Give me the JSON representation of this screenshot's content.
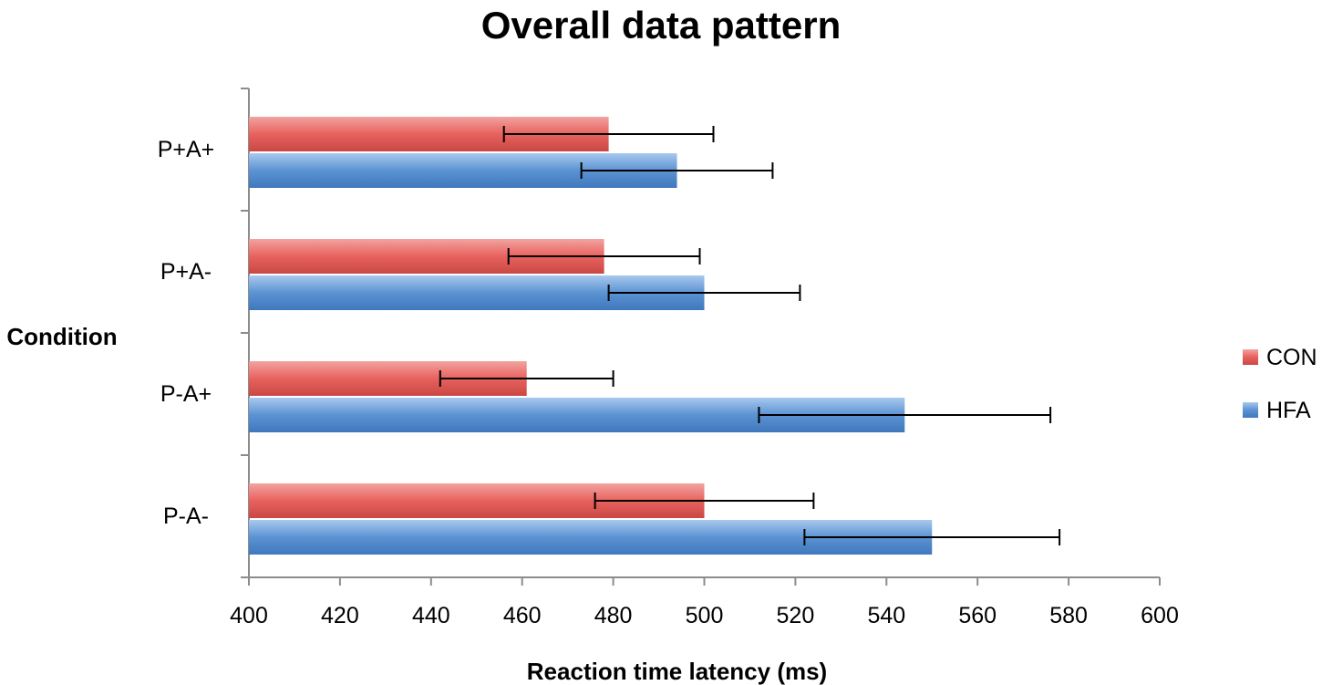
{
  "chart_data": {
    "type": "bar",
    "orientation": "horizontal",
    "title": "Overall data pattern",
    "xlabel": "Reaction time latency (ms)",
    "ylabel": "Condition",
    "xlim": [
      400,
      600
    ],
    "xticks": [
      400,
      420,
      440,
      460,
      480,
      500,
      520,
      540,
      560,
      580,
      600
    ],
    "categories": [
      "P+A+",
      "P+A-",
      "P-A+",
      "P-A-"
    ],
    "series": [
      {
        "name": "CON",
        "color": "#e8625e",
        "values": [
          479,
          478,
          461,
          500
        ],
        "error": [
          23,
          21,
          19,
          24
        ]
      },
      {
        "name": "HFA",
        "color": "#5b93d3",
        "values": [
          494,
          500,
          544,
          550
        ],
        "error": [
          21,
          21,
          32,
          28
        ]
      }
    ],
    "legend_position": "right",
    "grid": false
  }
}
